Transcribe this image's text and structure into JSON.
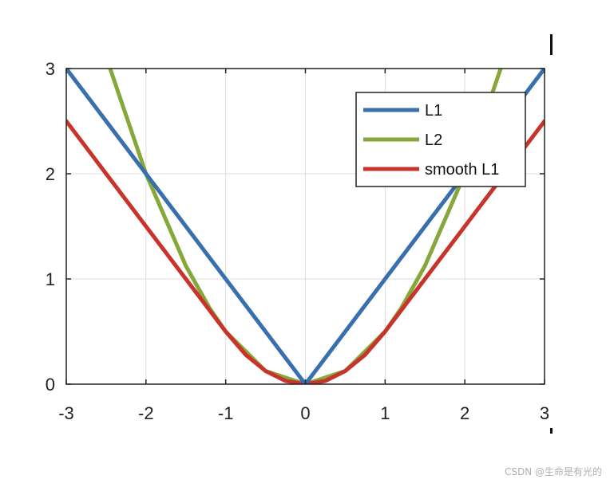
{
  "chart_data": {
    "type": "line",
    "title": "",
    "xlabel": "",
    "ylabel": "",
    "xlim": [
      -3,
      3
    ],
    "ylim": [
      0,
      3
    ],
    "x_ticks": [
      -3,
      -2,
      -1,
      0,
      1,
      2,
      3
    ],
    "y_ticks": [
      0,
      1,
      2,
      3
    ],
    "grid": true,
    "legend_position": "top-right",
    "series": [
      {
        "name": "L1",
        "color": "#3a6fad",
        "x": [
          -3,
          -2,
          -1,
          0,
          1,
          2,
          3
        ],
        "y": [
          3,
          2,
          1,
          0,
          1,
          2,
          3
        ]
      },
      {
        "name": "L2",
        "color": "#86a83a",
        "x": [
          -2.45,
          -2,
          -1.5,
          -1.2,
          -1,
          -0.5,
          0,
          0.5,
          1,
          1.2,
          1.5,
          2,
          2.45
        ],
        "y": [
          3.0,
          2.0,
          1.125,
          0.72,
          0.5,
          0.125,
          0,
          0.125,
          0.5,
          0.72,
          1.125,
          2.0,
          3.0
        ]
      },
      {
        "name": "smooth L1",
        "color": "#c8332b",
        "x": [
          -3,
          -2,
          -1,
          -0.75,
          -0.5,
          -0.25,
          0,
          0.25,
          0.5,
          0.75,
          1,
          2,
          3
        ],
        "y": [
          2.5,
          1.5,
          0.5,
          0.28,
          0.125,
          0.031,
          0,
          0.031,
          0.125,
          0.28,
          0.5,
          1.5,
          2.5
        ]
      }
    ]
  },
  "footer": {
    "watermark": "CSDN @生命是有光的"
  }
}
